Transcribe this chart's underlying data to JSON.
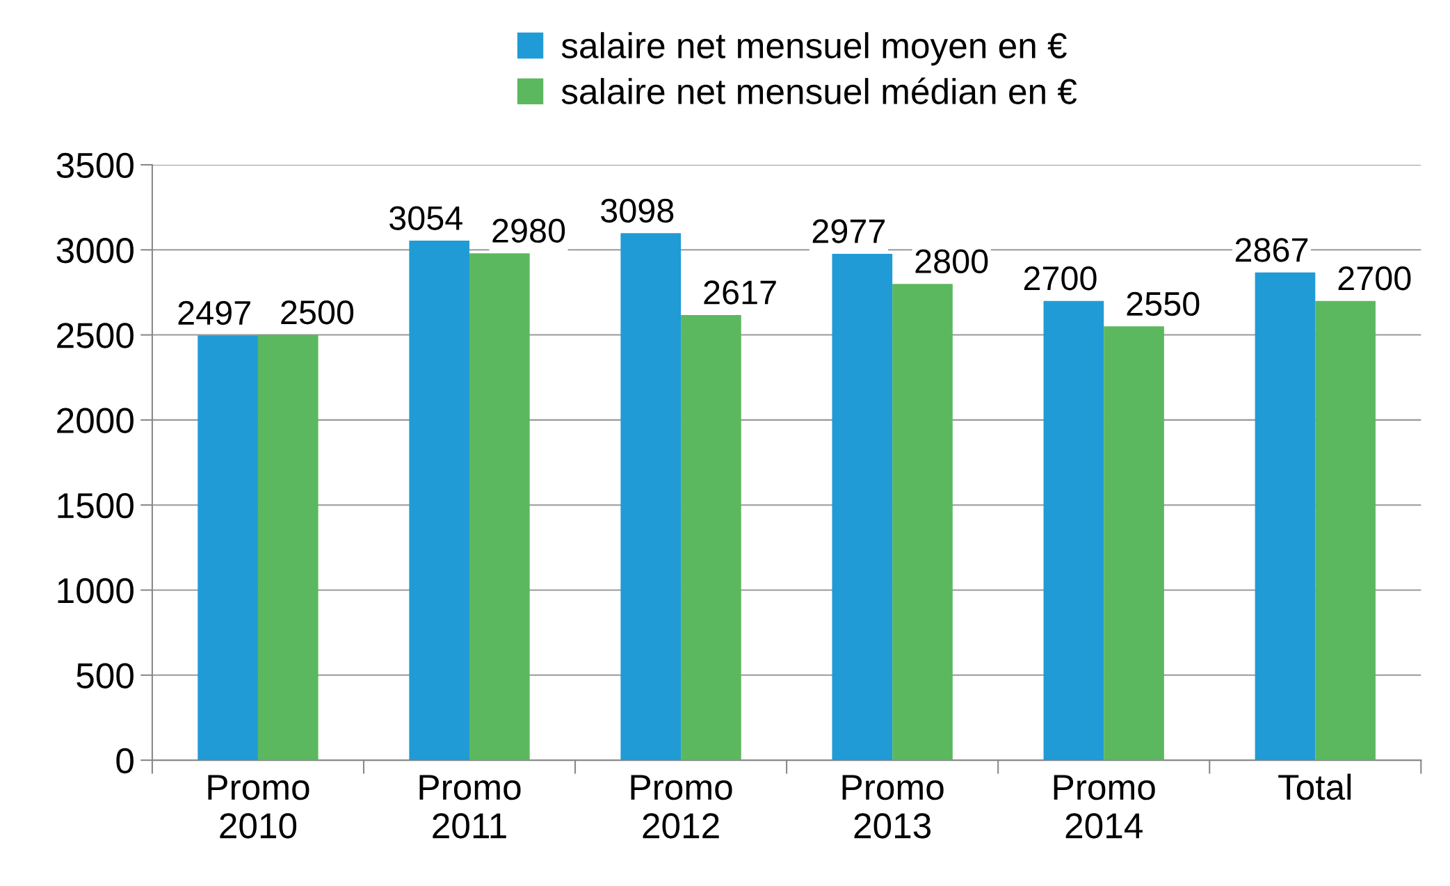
{
  "chart_data": {
    "type": "bar",
    "categories": [
      "Promo\n2010",
      "Promo\n2011",
      "Promo\n2012",
      "Promo\n2013",
      "Promo\n2014",
      "Total"
    ],
    "series": [
      {
        "name": "salaire net mensuel moyen en €",
        "color": "#219bd6",
        "values": [
          2497,
          3054,
          3098,
          2977,
          2700,
          2867
        ]
      },
      {
        "name": "salaire net mensuel médian en €",
        "color": "#5cb85f",
        "values": [
          2500,
          2980,
          2617,
          2800,
          2550,
          2700
        ]
      }
    ],
    "ylim": [
      0,
      3500
    ],
    "yticks": [
      0,
      500,
      1000,
      1500,
      2000,
      2500,
      3000,
      3500
    ],
    "grid": "y",
    "legend": "top",
    "data_labels": true
  }
}
